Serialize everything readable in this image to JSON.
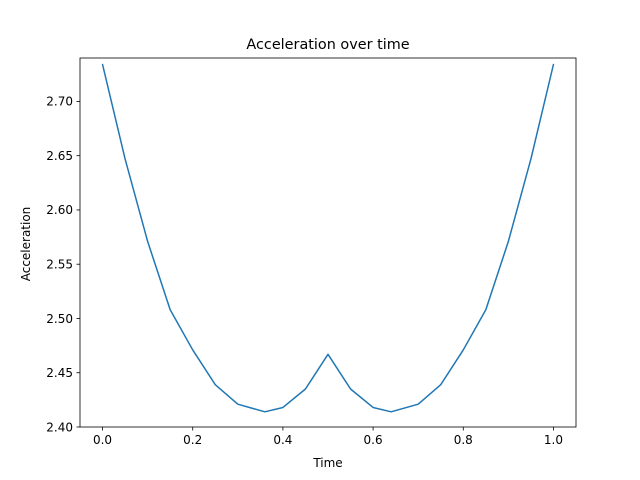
{
  "chart_data": {
    "type": "line",
    "title": "Acceleration over time",
    "xlabel": "Time",
    "ylabel": "Acceleration",
    "xlim": [
      -0.05,
      1.05
    ],
    "ylim": [
      2.4,
      2.74
    ],
    "xticks": [
      0.0,
      0.2,
      0.4,
      0.6,
      0.8,
      1.0
    ],
    "xtick_labels": [
      "0.0",
      "0.2",
      "0.4",
      "0.6",
      "0.8",
      "1.0"
    ],
    "yticks": [
      2.4,
      2.45,
      2.5,
      2.55,
      2.6,
      2.65,
      2.7
    ],
    "ytick_labels": [
      "2.40",
      "2.45",
      "2.50",
      "2.55",
      "2.60",
      "2.65",
      "2.70"
    ],
    "grid": false,
    "series": [
      {
        "color": "#1f77b4",
        "x": [
          0.0,
          0.05,
          0.1,
          0.15,
          0.2,
          0.25,
          0.3,
          0.36,
          0.4,
          0.45,
          0.5,
          0.55,
          0.6,
          0.64,
          0.7,
          0.75,
          0.8,
          0.85,
          0.9,
          0.95,
          1.0
        ],
        "y": [
          2.734,
          2.647,
          2.571,
          2.508,
          2.471,
          2.439,
          2.421,
          2.414,
          2.418,
          2.435,
          2.467,
          2.435,
          2.418,
          2.414,
          2.421,
          2.439,
          2.471,
          2.508,
          2.571,
          2.647,
          2.734
        ]
      }
    ]
  }
}
